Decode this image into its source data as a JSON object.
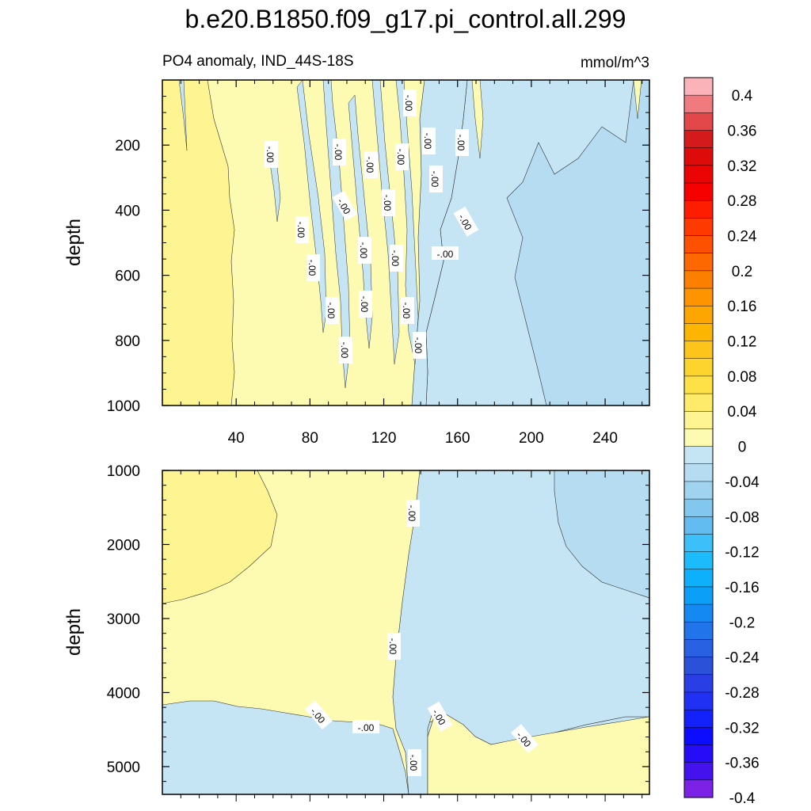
{
  "title": "b.e20.B1850.f09_g17.pi_control.all.299",
  "subtitle_left": "PO4 anomaly, IND_44S-18S",
  "subtitle_right": "mmol/m^3",
  "chart_data": [
    {
      "type": "heatmap",
      "panel": "upper",
      "variable": "PO4 anomaly",
      "region": "IND_44S-18S",
      "units": "mmol/m^3",
      "ylabel": "depth",
      "xlabel": "",
      "ylim": [
        0,
        1000
      ],
      "y_inverted": true,
      "xlim": [
        0,
        264
      ],
      "xticks": [
        "40",
        "80",
        "120",
        "160",
        "200",
        "240"
      ],
      "yticks": [
        "200",
        "400",
        "600",
        "800",
        "1000"
      ],
      "contour_label": "-.00",
      "zones": [
        {
          "x_range": [
            0,
            40
          ],
          "value_band": [
            0.04,
            0.06
          ],
          "note": "0-1000 m, deepest near surface-to-bottom left edge"
        },
        {
          "x_range": [
            40,
            144
          ],
          "value_band": [
            0.0,
            0.02
          ],
          "note": "mostly slightly positive with interleaved slightly negative streaks"
        },
        {
          "x_range": [
            144,
            264
          ],
          "value_band": [
            -0.02,
            0.0
          ],
          "note": "slightly negative"
        },
        {
          "x_range": [
            190,
            264
          ],
          "value_band": [
            -0.04,
            -0.02
          ],
          "note": "600-1000 m and scattered streaks"
        }
      ]
    },
    {
      "type": "heatmap",
      "panel": "lower",
      "variable": "PO4 anomaly",
      "region": "IND_44S-18S",
      "units": "mmol/m^3",
      "ylabel": "depth",
      "xlabel": "",
      "ylim": [
        1000,
        5375
      ],
      "y_inverted": true,
      "xlim": [
        0,
        264
      ],
      "yticks": [
        "1000",
        "2000",
        "3000",
        "4000",
        "5000"
      ],
      "contour_label": "-.00",
      "zones": [
        {
          "x_range": [
            0,
            60
          ],
          "depth_range": [
            1000,
            2800
          ],
          "value_band": [
            0.02,
            0.04
          ]
        },
        {
          "x_range": [
            0,
            135
          ],
          "depth_range": [
            1000,
            4200
          ],
          "value_band": [
            0.0,
            0.02
          ]
        },
        {
          "x_range": [
            0,
            135
          ],
          "depth_range": [
            4200,
            5375
          ],
          "value_band": [
            -0.02,
            0.0
          ]
        },
        {
          "x_range": [
            135,
            264
          ],
          "depth_range": [
            1000,
            4600
          ],
          "value_band": [
            -0.02,
            0.0
          ]
        },
        {
          "x_range": [
            215,
            264
          ],
          "depth_range": [
            1000,
            2700
          ],
          "value_band": [
            -0.04,
            -0.02
          ]
        },
        {
          "x_range": [
            135,
            264
          ],
          "depth_range": [
            4600,
            5375
          ],
          "value_band": [
            0.0,
            0.02
          ]
        }
      ]
    }
  ],
  "colorbar": {
    "labels": [
      "0.4",
      "0.36",
      "0.32",
      "0.28",
      "0.24",
      "0.2",
      "0.16",
      "0.12",
      "0.08",
      "0.04",
      "0",
      "-0.04",
      "-0.08",
      "-0.12",
      "-0.16",
      "-0.2",
      "-0.24",
      "-0.28",
      "-0.32",
      "-0.36",
      "-0.4"
    ],
    "colors": [
      "#f9b3b9",
      "#ef7b7e",
      "#e2474a",
      "#d41a1a",
      "#de0b0b",
      "#ea0404",
      "#f70000",
      "#ff1d00",
      "#fe3a00",
      "#fe5100",
      "#fd6900",
      "#fd7f00",
      "#fd9400",
      "#fda500",
      "#fcb500",
      "#fdc51c",
      "#fdd42d",
      "#fde147",
      "#feeb6a",
      "#fef592",
      "#fdfab1",
      "#c5e4f4",
      "#b5dcf1",
      "#9fd3ee",
      "#82c7ed",
      "#62bcf0",
      "#3dc0fa",
      "#1cbcfc",
      "#0fb0fb",
      "#0c9ff7",
      "#1489f1",
      "#2274ea",
      "#2861e1",
      "#2c51d9",
      "#2a3ee6",
      "#2131f4",
      "#1322fb",
      "#0c0cfe",
      "#260cf7",
      "#4312ec",
      "#7b22e6"
    ]
  },
  "labels": {
    "upper_ylabel": "depth",
    "lower_ylabel": "depth"
  }
}
